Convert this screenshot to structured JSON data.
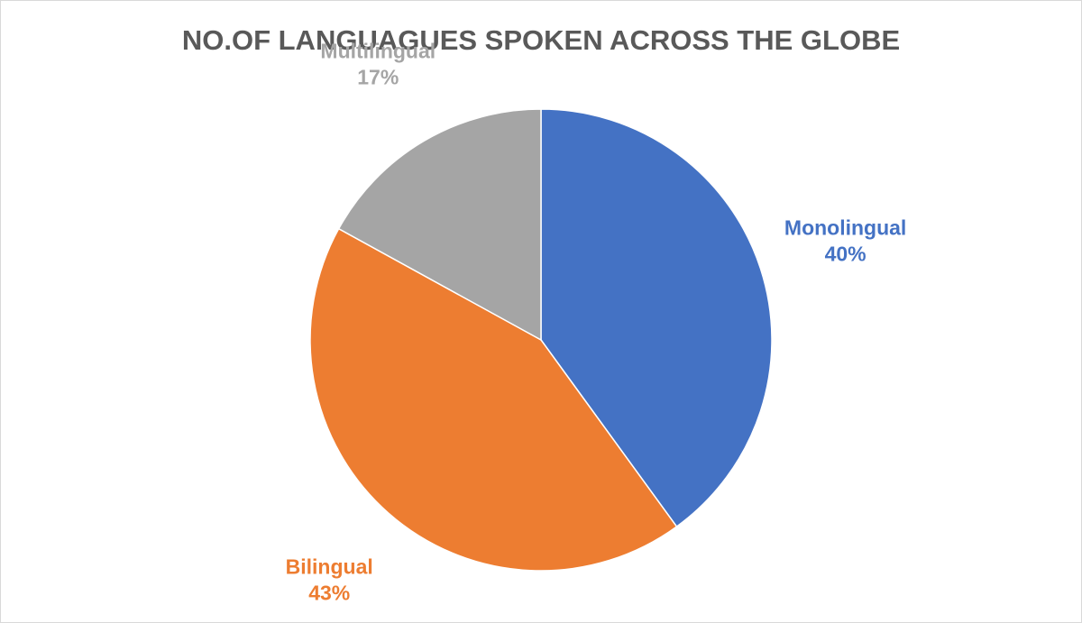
{
  "chart_data": {
    "type": "pie",
    "title": "NO.OF LANGUAGUES SPOKEN ACROSS THE GLOBE",
    "categories": [
      "Monolingual",
      "Bilingual",
      "Multilingual"
    ],
    "values": [
      40,
      43,
      17
    ],
    "value_labels": [
      "40%",
      "43%",
      "17%"
    ],
    "colors": [
      "#4472c4",
      "#ed7d31",
      "#a5a5a5"
    ]
  }
}
